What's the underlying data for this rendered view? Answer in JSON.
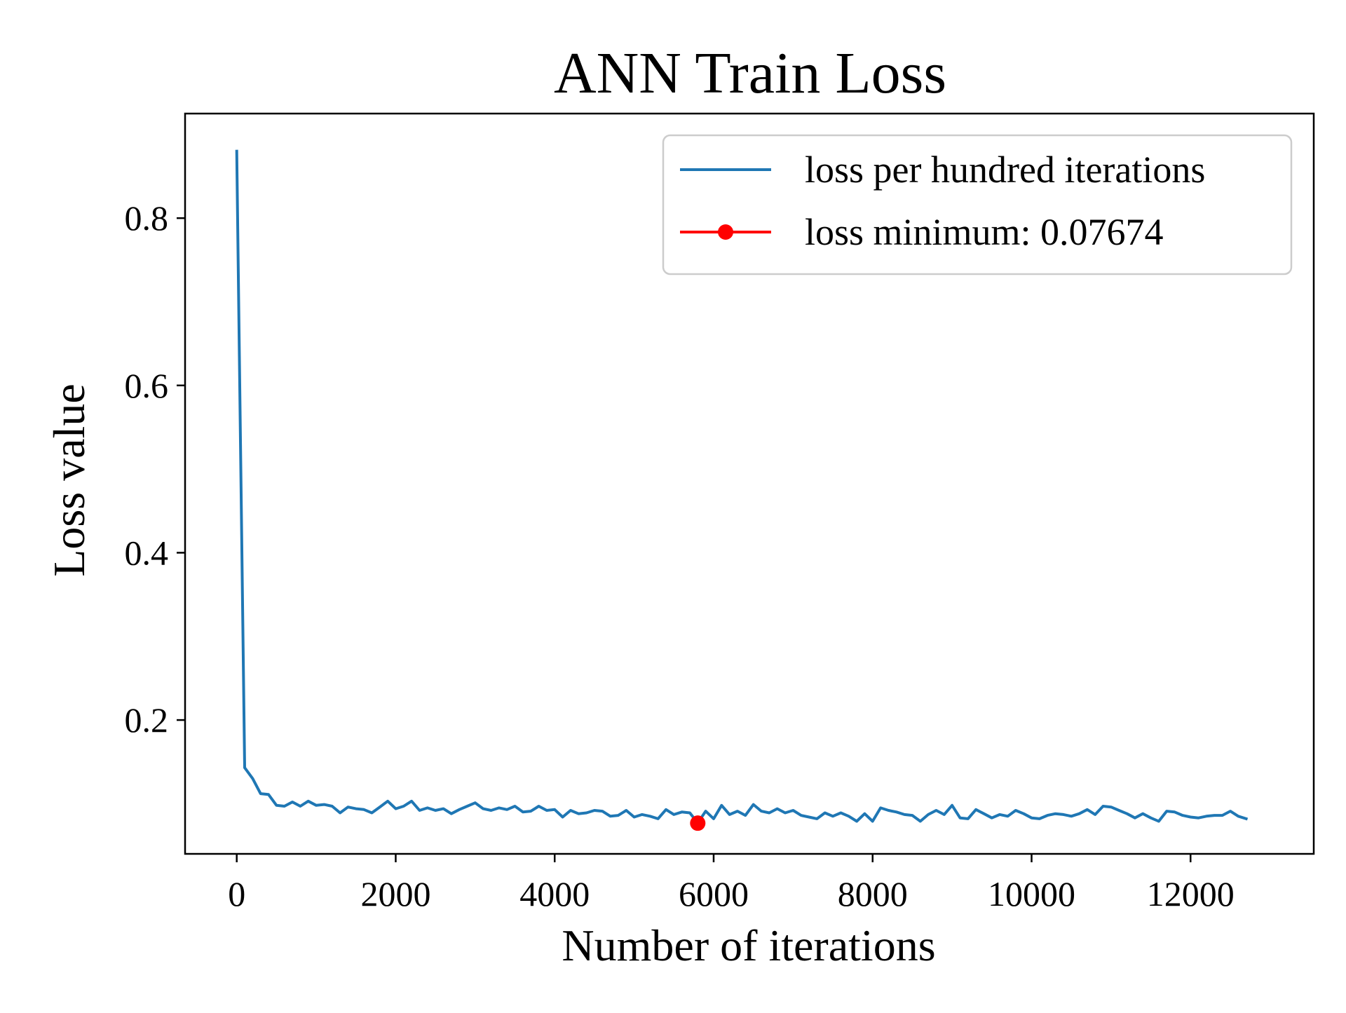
{
  "chart_data": {
    "type": "line",
    "title": "ANN  Train Loss",
    "xlabel": "Number of iterations",
    "ylabel": "Loss value",
    "xlim": [
      -650,
      13550
    ],
    "ylim": [
      0.04,
      0.925
    ],
    "x_ticks": [
      0,
      2000,
      4000,
      6000,
      8000,
      10000,
      12000
    ],
    "x_tick_labels": [
      "0",
      "2000",
      "4000",
      "6000",
      "8000",
      "10000",
      "12000"
    ],
    "y_ticks": [
      0.2,
      0.4,
      0.6,
      0.8
    ],
    "y_tick_labels": [
      "0.2",
      "0.4",
      "0.6",
      "0.8"
    ],
    "grid": false,
    "legend_position": "top-right",
    "series": [
      {
        "name": "loss per hundred iterations",
        "color": "#1f77b4",
        "marker": "none",
        "x": [
          0,
          100,
          200,
          300,
          400,
          500,
          600,
          700,
          800,
          900,
          1000,
          1100,
          1200,
          1300,
          1400,
          1500,
          1600,
          1700,
          1800,
          1900,
          2000,
          2100,
          2200,
          2300,
          2400,
          2500,
          2600,
          2700,
          2800,
          2900,
          3000,
          3100,
          3200,
          3300,
          3400,
          3500,
          3600,
          3700,
          3800,
          3900,
          4000,
          4100,
          4200,
          4300,
          4400,
          4500,
          4600,
          4700,
          4800,
          4900,
          5000,
          5100,
          5200,
          5300,
          5400,
          5500,
          5600,
          5700,
          5800,
          5900,
          6000,
          6100,
          6200,
          6300,
          6400,
          6500,
          6600,
          6700,
          6800,
          6900,
          7000,
          7100,
          7200,
          7300,
          7400,
          7500,
          7600,
          7700,
          7800,
          7900,
          8000,
          8100,
          8200,
          8300,
          8400,
          8500,
          8600,
          8700,
          8800,
          8900,
          9000,
          9100,
          9200,
          9300,
          9400,
          9500,
          9600,
          9700,
          9800,
          9900,
          10000,
          10100,
          10200,
          10300,
          10400,
          10500,
          10600,
          10700,
          10800,
          10900,
          11000,
          11100,
          11200,
          11300,
          11400,
          11500,
          11600,
          11700,
          11800,
          11900,
          12000,
          12100,
          12200,
          12300,
          12400,
          12500,
          12600,
          12700
        ],
        "y": [
          0.88,
          0.143,
          0.13,
          0.112,
          0.111,
          0.098,
          0.097,
          0.102,
          0.097,
          0.103,
          0.098,
          0.099,
          0.097,
          0.089,
          0.096,
          0.094,
          0.093,
          0.089,
          0.096,
          0.103,
          0.094,
          0.097,
          0.103,
          0.092,
          0.095,
          0.092,
          0.094,
          0.088,
          0.093,
          0.097,
          0.101,
          0.094,
          0.092,
          0.095,
          0.093,
          0.097,
          0.09,
          0.091,
          0.097,
          0.092,
          0.093,
          0.084,
          0.092,
          0.088,
          0.089,
          0.092,
          0.091,
          0.085,
          0.086,
          0.092,
          0.084,
          0.087,
          0.085,
          0.082,
          0.093,
          0.087,
          0.09,
          0.089,
          0.077,
          0.091,
          0.082,
          0.098,
          0.087,
          0.091,
          0.086,
          0.099,
          0.091,
          0.089,
          0.094,
          0.089,
          0.092,
          0.086,
          0.084,
          0.082,
          0.089,
          0.085,
          0.089,
          0.085,
          0.079,
          0.088,
          0.079,
          0.095,
          0.092,
          0.09,
          0.087,
          0.086,
          0.079,
          0.087,
          0.092,
          0.087,
          0.098,
          0.083,
          0.082,
          0.093,
          0.088,
          0.083,
          0.087,
          0.085,
          0.092,
          0.088,
          0.083,
          0.082,
          0.086,
          0.088,
          0.087,
          0.085,
          0.088,
          0.093,
          0.087,
          0.097,
          0.096,
          0.092,
          0.088,
          0.083,
          0.088,
          0.083,
          0.079,
          0.091,
          0.09,
          0.086,
          0.084,
          0.083,
          0.085,
          0.086,
          0.086,
          0.091,
          0.085,
          0.082
        ]
      },
      {
        "name": "loss minimum: 0.07674",
        "color": "#ff0000",
        "marker": "circle",
        "x": [
          5800
        ],
        "y": [
          0.07674
        ]
      }
    ]
  }
}
